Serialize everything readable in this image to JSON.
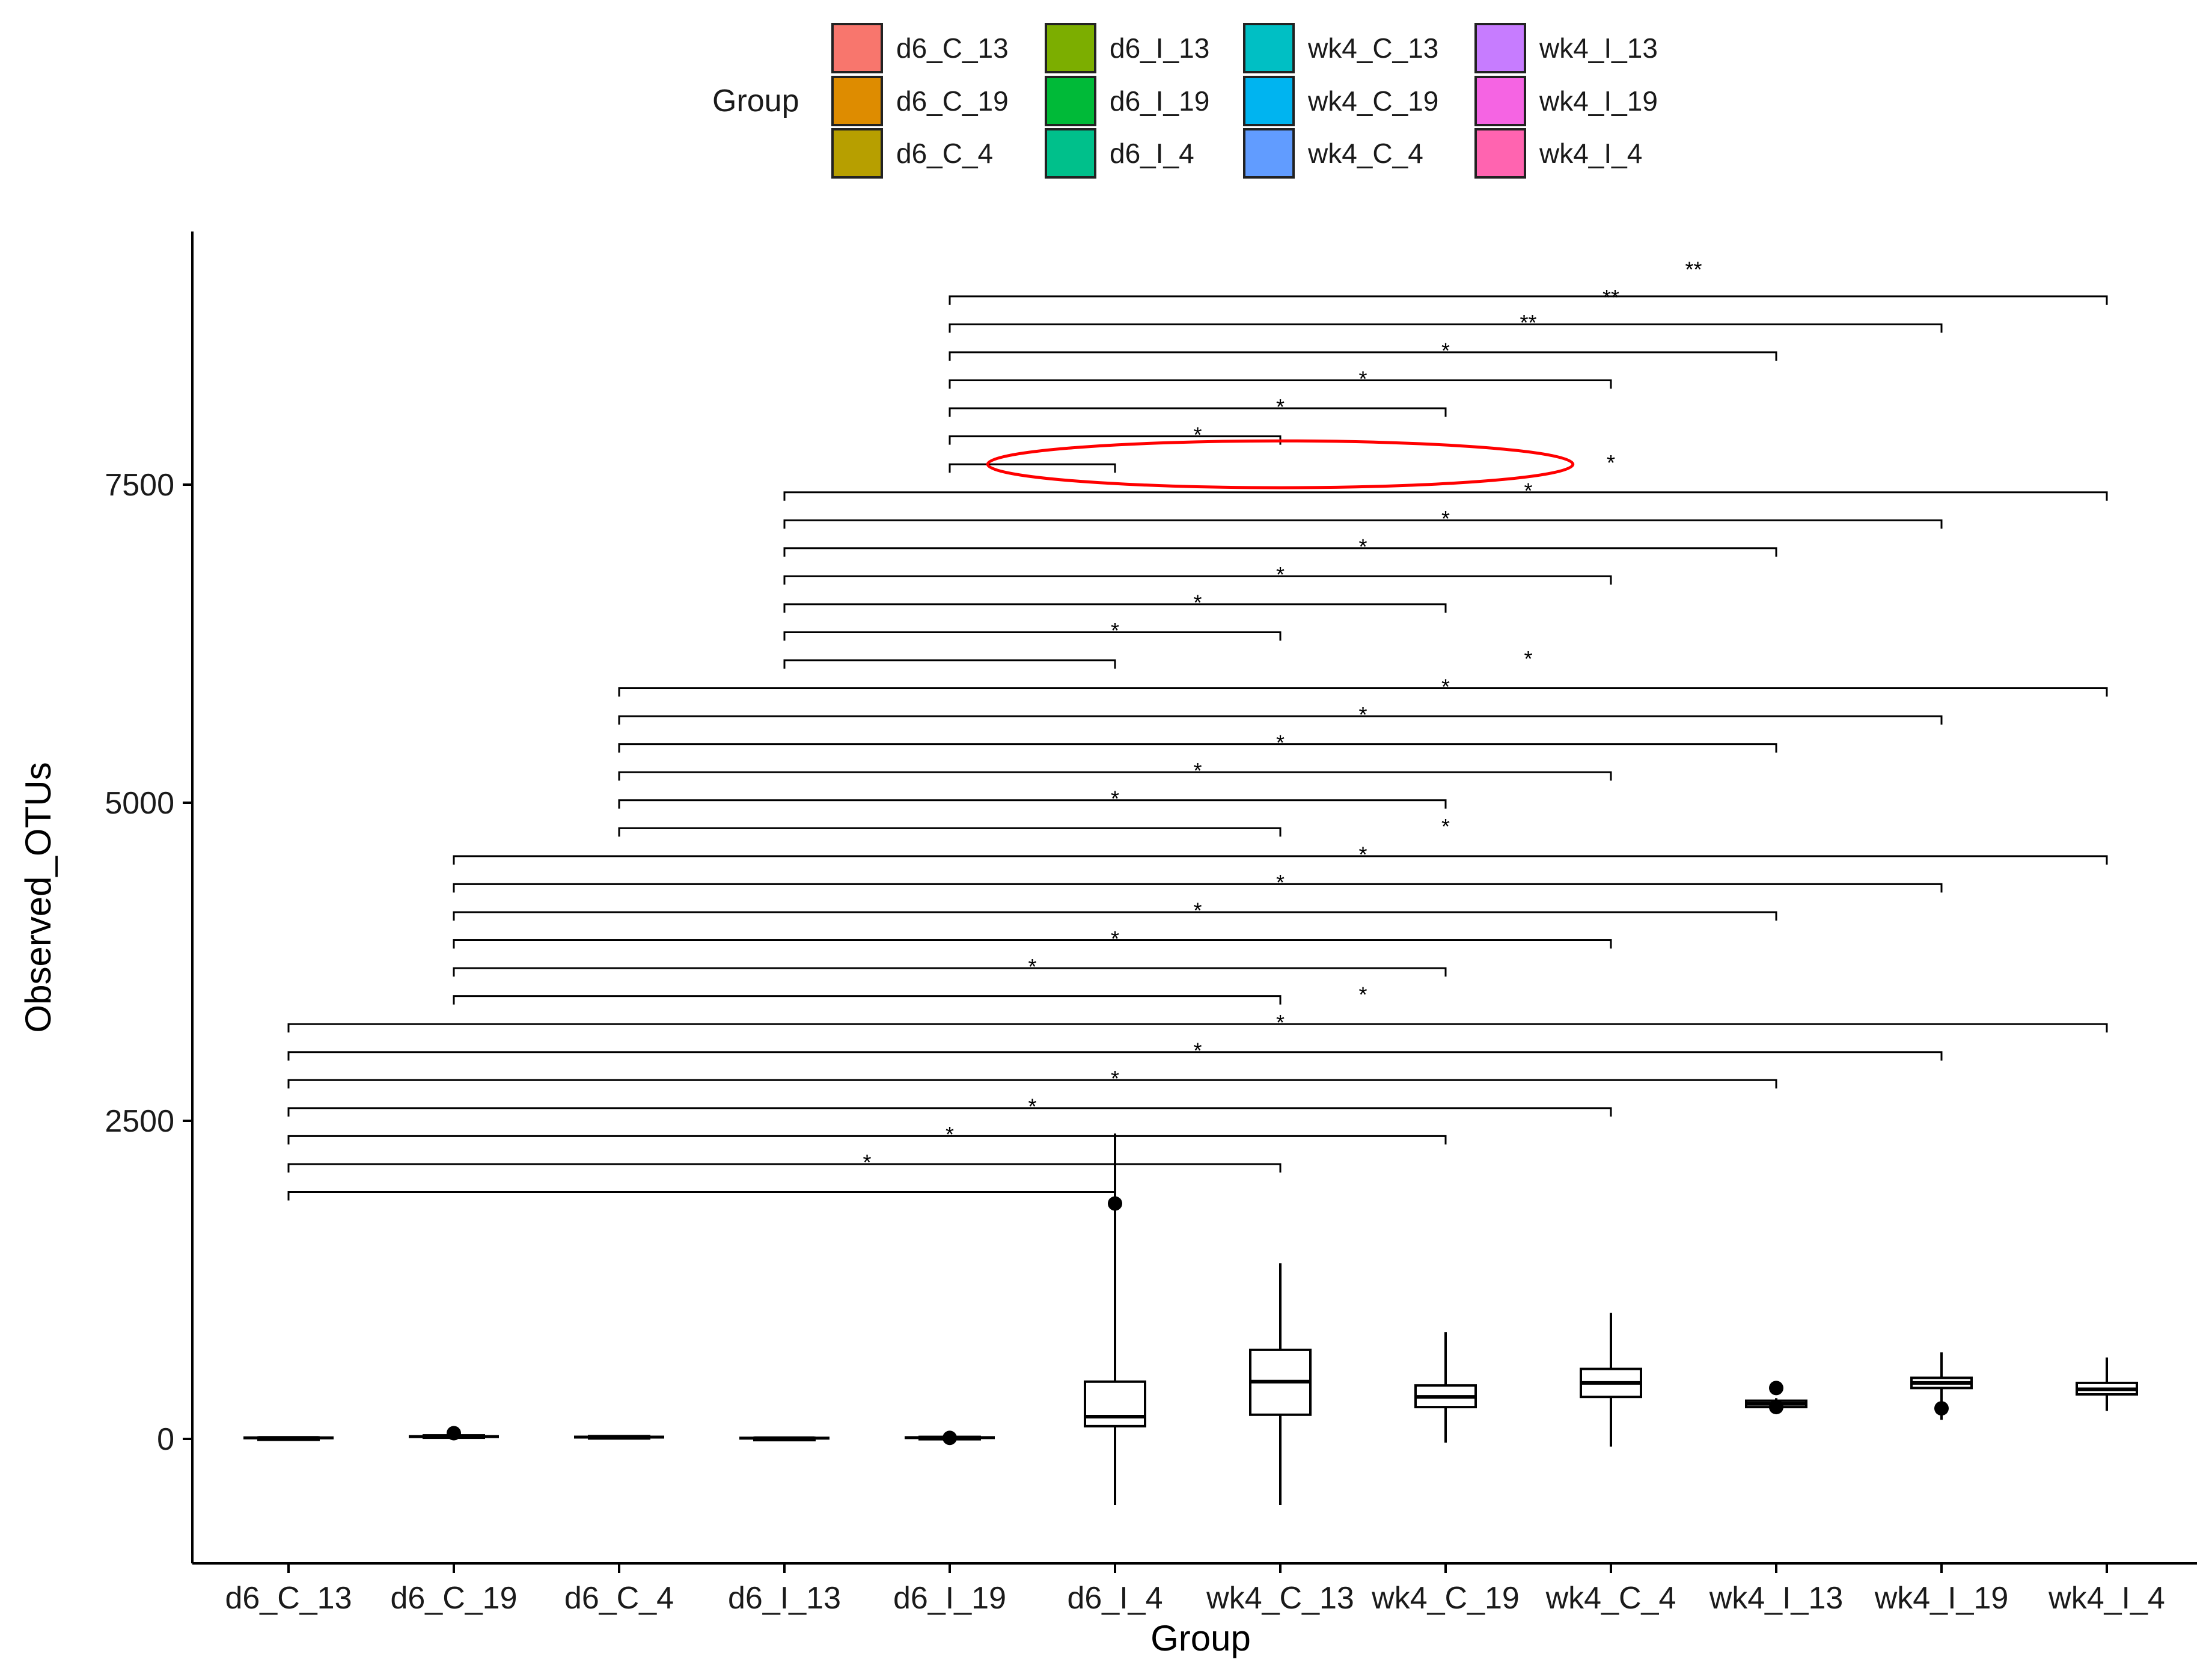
{
  "chart_data": {
    "type": "boxplot",
    "xlabel": "Group",
    "ylabel": "Observed_OTUs",
    "ylim": [
      -950,
      9400
    ],
    "yticks": [
      0,
      2500,
      5000,
      7500
    ],
    "categories": [
      "d6_C_13",
      "d6_C_19",
      "d6_C_4",
      "d6_I_13",
      "d6_I_19",
      "d6_I_4",
      "wk4_C_13",
      "wk4_C_19",
      "wk4_C_4",
      "wk4_I_13",
      "wk4_I_19",
      "wk4_I_4"
    ],
    "legend": {
      "title": "Group",
      "position": "top",
      "entries": [
        {
          "label": "d6_C_13",
          "color": "#F8766D"
        },
        {
          "label": "d6_C_19",
          "color": "#DE8C00"
        },
        {
          "label": "d6_C_4",
          "color": "#B79F00"
        },
        {
          "label": "d6_I_13",
          "color": "#7CAE00"
        },
        {
          "label": "d6_I_19",
          "color": "#00BA38"
        },
        {
          "label": "d6_I_4",
          "color": "#00C08B"
        },
        {
          "label": "wk4_C_13",
          "color": "#00BFC4"
        },
        {
          "label": "wk4_C_19",
          "color": "#00B4F0"
        },
        {
          "label": "wk4_C_4",
          "color": "#619CFF"
        },
        {
          "label": "wk4_I_13",
          "color": "#C77CFF"
        },
        {
          "label": "wk4_I_19",
          "color": "#F564E3"
        },
        {
          "label": "wk4_I_4",
          "color": "#FF64B0"
        }
      ]
    },
    "boxes": [
      {
        "group": "d6_C_13",
        "q1": 5,
        "median": 8,
        "q3": 12,
        "whisker_low": 0,
        "whisker_high": 15,
        "outliers": []
      },
      {
        "group": "d6_C_19",
        "q1": 10,
        "median": 18,
        "q3": 28,
        "whisker_low": 2,
        "whisker_high": 40,
        "outliers": [
          45
        ]
      },
      {
        "group": "d6_C_4",
        "q1": 8,
        "median": 14,
        "q3": 22,
        "whisker_low": 0,
        "whisker_high": 30,
        "outliers": []
      },
      {
        "group": "d6_I_13",
        "q1": 3,
        "median": 6,
        "q3": 9,
        "whisker_low": 0,
        "whisker_high": 12,
        "outliers": []
      },
      {
        "group": "d6_I_19",
        "q1": 5,
        "median": 10,
        "q3": 16,
        "whisker_low": 0,
        "whisker_high": 22,
        "outliers": [
          8
        ]
      },
      {
        "group": "d6_I_4",
        "q1": 100,
        "median": 175,
        "q3": 450,
        "whisker_low": -520,
        "whisker_high": 2400,
        "outliers": [
          1850
        ]
      },
      {
        "group": "wk4_C_13",
        "q1": 190,
        "median": 450,
        "q3": 700,
        "whisker_low": -520,
        "whisker_high": 1380,
        "outliers": []
      },
      {
        "group": "wk4_C_19",
        "q1": 250,
        "median": 330,
        "q3": 420,
        "whisker_low": -30,
        "whisker_high": 840,
        "outliers": []
      },
      {
        "group": "wk4_C_4",
        "q1": 330,
        "median": 440,
        "q3": 550,
        "whisker_low": -60,
        "whisker_high": 990,
        "outliers": []
      },
      {
        "group": "wk4_I_13",
        "q1": 250,
        "median": 275,
        "q3": 300,
        "whisker_low": 230,
        "whisker_high": 320,
        "outliers": [
          400,
          250
        ]
      },
      {
        "group": "wk4_I_19",
        "q1": 400,
        "median": 440,
        "q3": 480,
        "whisker_low": 150,
        "whisker_high": 680,
        "outliers": [
          240
        ]
      },
      {
        "group": "wk4_I_4",
        "q1": 350,
        "median": 390,
        "q3": 440,
        "whisker_low": 220,
        "whisker_high": 640,
        "outliers": []
      }
    ],
    "comparisons": [
      {
        "from": "d6_C_13",
        "to": "d6_I_4",
        "y": 1940,
        "label": "*",
        "label_y": 2180,
        "label_x": 3.5
      },
      {
        "from": "d6_C_13",
        "to": "wk4_C_13",
        "y": 2160,
        "label": "*",
        "label_y": 2400,
        "label_x": 4.0
      },
      {
        "from": "d6_C_13",
        "to": "wk4_C_19",
        "y": 2380,
        "label": "*",
        "label_y": 2620,
        "label_x": 4.5
      },
      {
        "from": "d6_C_13",
        "to": "wk4_C_4",
        "y": 2600,
        "label": "*",
        "label_y": 2840,
        "label_x": 5.0
      },
      {
        "from": "d6_C_13",
        "to": "wk4_I_13",
        "y": 2820,
        "label": "*",
        "label_y": 3060,
        "label_x": 5.5
      },
      {
        "from": "d6_C_13",
        "to": "wk4_I_19",
        "y": 3040,
        "label": "*",
        "label_y": 3280,
        "label_x": 6.0
      },
      {
        "from": "d6_C_13",
        "to": "wk4_I_4",
        "y": 3260,
        "label": "*",
        "label_y": 3500,
        "label_x": 6.5
      },
      {
        "from": "d6_C_19",
        "to": "wk4_C_13",
        "y": 3480,
        "label": "*",
        "label_y": 3720,
        "label_x": 4.5
      },
      {
        "from": "d6_C_19",
        "to": "wk4_C_19",
        "y": 3700,
        "label": "*",
        "label_y": 3940,
        "label_x": 5.0
      },
      {
        "from": "d6_C_19",
        "to": "wk4_C_4",
        "y": 3920,
        "label": "*",
        "label_y": 4160,
        "label_x": 5.5
      },
      {
        "from": "d6_C_19",
        "to": "wk4_I_13",
        "y": 4140,
        "label": "*",
        "label_y": 4380,
        "label_x": 6.0
      },
      {
        "from": "d6_C_19",
        "to": "wk4_I_19",
        "y": 4360,
        "label": "*",
        "label_y": 4600,
        "label_x": 6.5
      },
      {
        "from": "d6_C_19",
        "to": "wk4_I_4",
        "y": 4580,
        "label": "*",
        "label_y": 4820,
        "label_x": 7.0
      },
      {
        "from": "d6_C_4",
        "to": "wk4_C_13",
        "y": 4800,
        "label": "*",
        "label_y": 5040,
        "label_x": 5.0
      },
      {
        "from": "d6_C_4",
        "to": "wk4_C_19",
        "y": 5020,
        "label": "*",
        "label_y": 5260,
        "label_x": 5.5
      },
      {
        "from": "d6_C_4",
        "to": "wk4_C_4",
        "y": 5240,
        "label": "*",
        "label_y": 5480,
        "label_x": 6.0
      },
      {
        "from": "d6_C_4",
        "to": "wk4_I_13",
        "y": 5460,
        "label": "*",
        "label_y": 5700,
        "label_x": 6.5
      },
      {
        "from": "d6_C_4",
        "to": "wk4_I_19",
        "y": 5680,
        "label": "*",
        "label_y": 5920,
        "label_x": 7.0
      },
      {
        "from": "d6_C_4",
        "to": "wk4_I_4",
        "y": 5900,
        "label": "*",
        "label_y": 6140,
        "label_x": 7.5
      },
      {
        "from": "d6_I_13",
        "to": "d6_I_4",
        "y": 6120,
        "label": "*",
        "label_y": 6360,
        "label_x": 5.0
      },
      {
        "from": "d6_I_13",
        "to": "wk4_C_13",
        "y": 6340,
        "label": "*",
        "label_y": 6580,
        "label_x": 5.5
      },
      {
        "from": "d6_I_13",
        "to": "wk4_C_19",
        "y": 6560,
        "label": "*",
        "label_y": 6800,
        "label_x": 6.0
      },
      {
        "from": "d6_I_13",
        "to": "wk4_C_4",
        "y": 6780,
        "label": "*",
        "label_y": 7020,
        "label_x": 6.5
      },
      {
        "from": "d6_I_13",
        "to": "wk4_I_13",
        "y": 7000,
        "label": "*",
        "label_y": 7240,
        "label_x": 7.0
      },
      {
        "from": "d6_I_13",
        "to": "wk4_I_19",
        "y": 7220,
        "label": "*",
        "label_y": 7460,
        "label_x": 7.5
      },
      {
        "from": "d6_I_13",
        "to": "wk4_I_4",
        "y": 7440,
        "label": "*",
        "label_y": 7680,
        "label_x": 8.0
      },
      {
        "from": "d6_I_19",
        "to": "d6_I_4",
        "y": 7660,
        "label": "*",
        "label_y": 7900,
        "label_x": 5.5
      },
      {
        "from": "d6_I_19",
        "to": "wk4_C_13",
        "y": 7880,
        "label": "*",
        "label_y": 8120,
        "label_x": 6.0
      },
      {
        "from": "d6_I_19",
        "to": "wk4_C_19",
        "y": 8100,
        "label": "*",
        "label_y": 8340,
        "label_x": 6.5
      },
      {
        "from": "d6_I_19",
        "to": "wk4_C_4",
        "y": 8320,
        "label": "*",
        "label_y": 8560,
        "label_x": 7.0
      },
      {
        "from": "d6_I_19",
        "to": "wk4_I_13",
        "y": 8540,
        "label": "**",
        "label_y": 8780,
        "label_x": 7.5
      },
      {
        "from": "d6_I_19",
        "to": "wk4_I_19",
        "y": 8760,
        "label": "**",
        "label_y": 8980,
        "label_x": 8.0
      },
      {
        "from": "d6_I_19",
        "to": "wk4_I_4",
        "y": 8980,
        "label": "**",
        "label_y": 9200,
        "label_x": 8.5
      }
    ],
    "annotation": {
      "type": "ellipse",
      "color": "#ff0000",
      "center_x": 6.0,
      "center_y": 7660,
      "rx_groups": 1.77,
      "ry_value": 160
    }
  }
}
